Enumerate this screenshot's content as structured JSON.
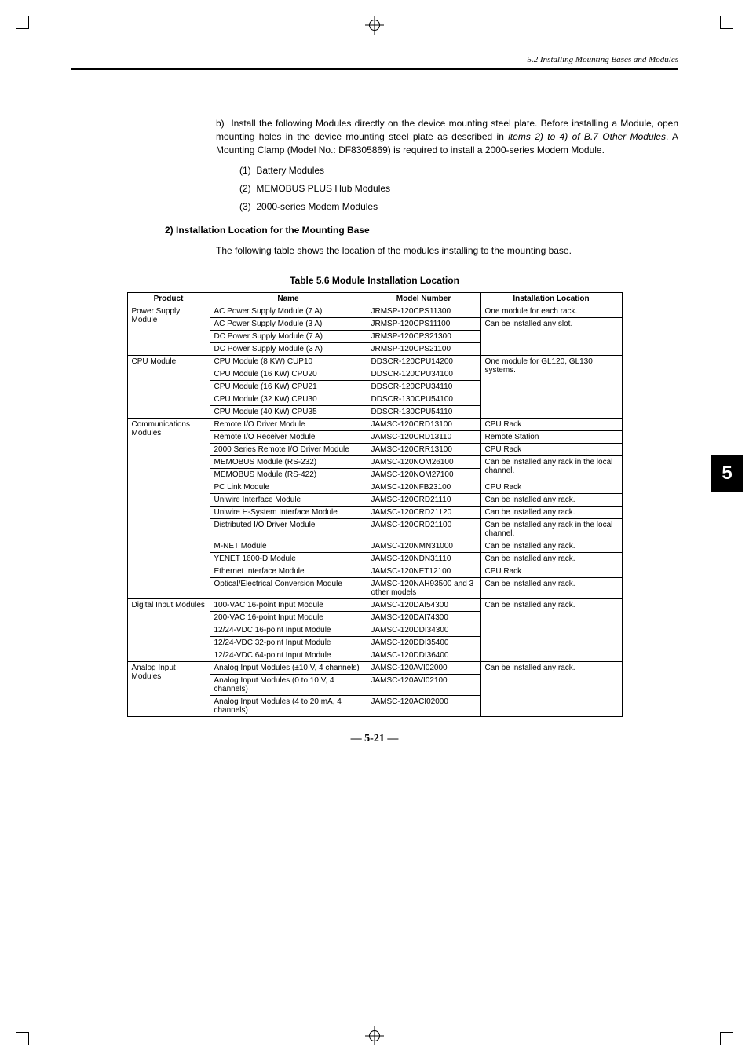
{
  "header": {
    "section_title": "5.2 Installing Mounting Bases and Modules"
  },
  "tab": {
    "number": "5"
  },
  "intro": {
    "b_label": "b)",
    "b_text_1": "Install the following Modules directly on the device mounting steel plate. Before installing a Module, open mounting holes in the device mounting steel plate as described in ",
    "b_text_italic": "items 2) to 4) of B.7 Other Modules",
    "b_text_2": ". A Mounting Clamp (Model No.: DF8305869) is required to install a 2000-series Modem Module.",
    "items": [
      {
        "num": "(1)",
        "text": "Battery Modules"
      },
      {
        "num": "(2)",
        "text": "MEMOBUS PLUS Hub Modules"
      },
      {
        "num": "(3)",
        "text": "2000-series Modem Modules"
      }
    ]
  },
  "section2": {
    "heading": "2) Installation Location for the Mounting Base",
    "desc": "The following table shows the location of the modules installing to the mounting base."
  },
  "table": {
    "caption": "Table 5.6 Module Installation Location",
    "headers": [
      "Product",
      "Name",
      "Model Number",
      "Installation Location"
    ],
    "col_widths": [
      "105",
      "200",
      "145",
      "180"
    ],
    "groups": [
      {
        "product": "Power Supply Module",
        "rows": [
          {
            "name": "AC Power Supply Module (7 A)",
            "model": "JRMSP-120CPS11300",
            "loc": "One module for each rack.",
            "loc_rowspan": 1
          },
          {
            "name": "AC Power Supply Module (3 A)",
            "model": "JRMSP-120CPS11100",
            "loc": "Can be installed any slot.",
            "loc_rowspan": 3
          },
          {
            "name": "DC Power Supply Module (7 A)",
            "model": "JRMSP-120CPS21300"
          },
          {
            "name": "DC Power Supply Module (3 A)",
            "model": "JRMSP-120CPS21100"
          }
        ]
      },
      {
        "product": "CPU Module",
        "rows": [
          {
            "name": "CPU Module (8 KW) CUP10",
            "model": "DDSCR-120CPU14200",
            "loc": "One module for GL120, GL130 systems.",
            "loc_rowspan": 5
          },
          {
            "name": "CPU Module (16 KW) CPU20",
            "model": "DDSCR-120CPU34100"
          },
          {
            "name": "CPU Module (16 KW) CPU21",
            "model": "DDSCR-120CPU34110"
          },
          {
            "name": "CPU Module (32 KW) CPU30",
            "model": "DDSCR-130CPU54100"
          },
          {
            "name": "CPU Module (40 KW) CPU35",
            "model": "DDSCR-130CPU54110"
          }
        ]
      },
      {
        "product": "Communications Modules",
        "rows": [
          {
            "name": "Remote I/O Driver Module",
            "model": "JAMSC-120CRD13100",
            "loc": "CPU Rack",
            "loc_rowspan": 1
          },
          {
            "name": "Remote I/O Receiver Module",
            "model": "JAMSC-120CRD13110",
            "loc": "Remote Station",
            "loc_rowspan": 1
          },
          {
            "name": "2000 Series Remote I/O Driver Module",
            "model": "JAMSC-120CRR13100",
            "loc": "CPU Rack",
            "loc_rowspan": 1
          },
          {
            "name": "MEMOBUS Module (RS-232)",
            "model": "JAMSC-120NOM26100",
            "loc": "Can be installed any rack in the local channel.",
            "loc_rowspan": 2
          },
          {
            "name": "MEMOBUS Module (RS-422)",
            "model": "JAMSC-120NOM27100"
          },
          {
            "name": "PC Link Module",
            "model": "JAMSC-120NFB23100",
            "loc": "CPU Rack",
            "loc_rowspan": 1
          },
          {
            "name": "Uniwire Interface Module",
            "model": "JAMSC-120CRD21110",
            "loc": "Can be installed any rack.",
            "loc_rowspan": 1
          },
          {
            "name": "Uniwire H-System Interface Module",
            "model": "JAMSC-120CRD21120",
            "loc": "Can be installed any rack.",
            "loc_rowspan": 1
          },
          {
            "name": "Distributed I/O Driver Module",
            "model": "JAMSC-120CRD21100",
            "loc": "Can be installed any rack in the local channel.",
            "loc_rowspan": 1
          },
          {
            "name": "M-NET Module",
            "model": "JAMSC-120NMN31000",
            "loc": "Can be installed any rack.",
            "loc_rowspan": 1
          },
          {
            "name": "YENET 1600-D Module",
            "model": "JAMSC-120NDN31110",
            "loc": "Can be installed any rack.",
            "loc_rowspan": 1
          },
          {
            "name": "Ethernet Interface Module",
            "model": "JAMSC-120NET12100",
            "loc": "CPU Rack",
            "loc_rowspan": 1
          },
          {
            "name": "Optical/Electrical Conversion Module",
            "model": "JAMSC-120NAH93500 and 3 other models",
            "loc": "Can be installed any rack.",
            "loc_rowspan": 1
          }
        ]
      },
      {
        "product": "Digital Input Modules",
        "rows": [
          {
            "name": "100-VAC 16-point Input Module",
            "model": "JAMSC-120DAI54300",
            "loc": "Can be installed any rack.",
            "loc_rowspan": 5
          },
          {
            "name": "200-VAC 16-point Input Module",
            "model": "JAMSC-120DAI74300"
          },
          {
            "name": "12/24-VDC 16-point Input Module",
            "model": "JAMSC-120DDI34300"
          },
          {
            "name": "12/24-VDC 32-point Input Module",
            "model": "JAMSC-120DDI35400"
          },
          {
            "name": "12/24-VDC 64-point Input Module",
            "model": "JAMSC-120DDI36400"
          }
        ]
      },
      {
        "product": "Analog Input Modules",
        "rows": [
          {
            "name": "Analog Input Modules (±10 V, 4 channels)",
            "model": "JAMSC-120AVI02000",
            "loc": "Can be installed any rack.",
            "loc_rowspan": 3
          },
          {
            "name": "Analog Input Modules (0 to 10 V, 4 channels)",
            "model": "JAMSC-120AVI02100"
          },
          {
            "name": "Analog Input Modules (4 to 20 mA, 4 channels)",
            "model": "JAMSC-120ACI02000"
          }
        ]
      }
    ]
  },
  "footer": {
    "page": "— 5-21 —"
  }
}
